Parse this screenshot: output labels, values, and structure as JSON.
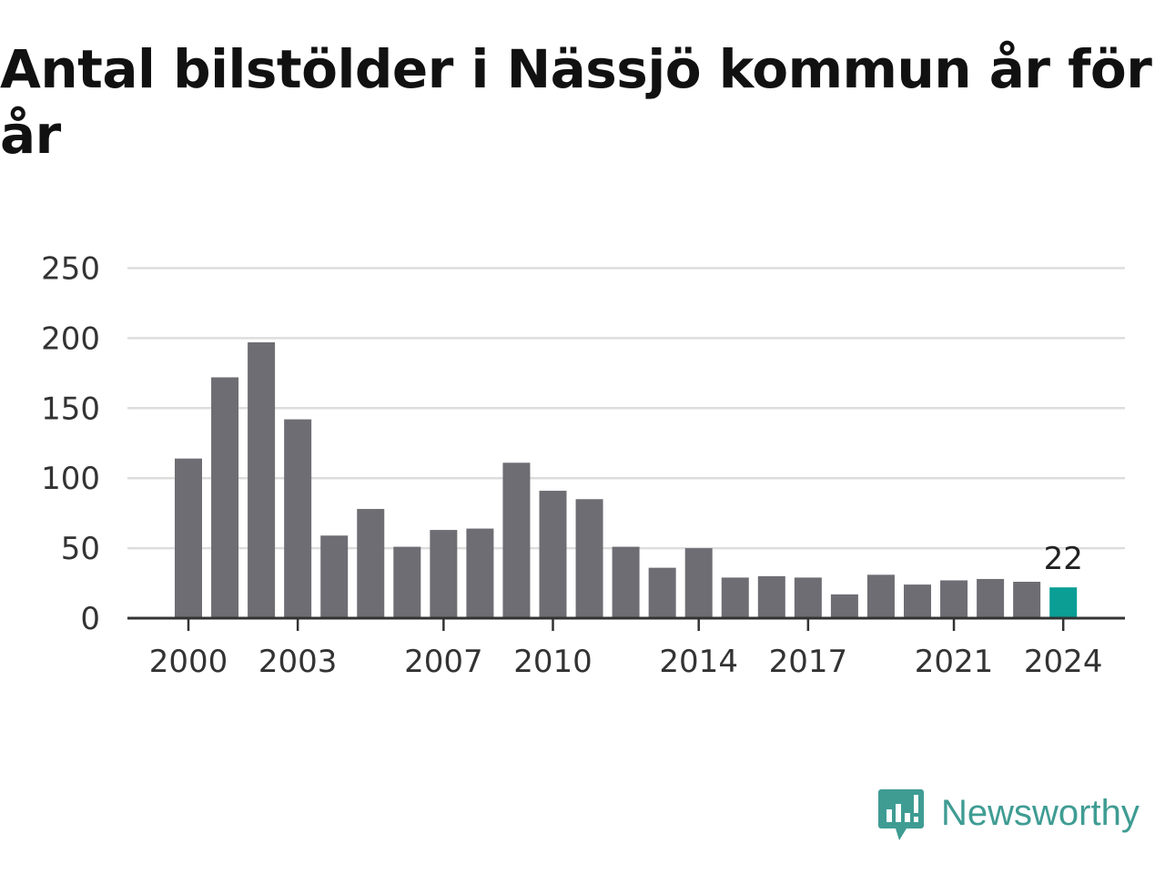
{
  "title": "Antal bilstölder i Nässjö kommun år för år",
  "brand": {
    "name": "Newsworthy",
    "color": "#3f9c93"
  },
  "colors": {
    "bar": "#6e6d73",
    "highlight": "#0a9e94",
    "grid": "#dddddd",
    "axis": "#333333"
  },
  "chart_data": {
    "type": "bar",
    "title": "Antal bilstölder i Nässjö kommun år för år",
    "xlabel": "",
    "ylabel": "",
    "categories": [
      2000,
      2001,
      2002,
      2003,
      2004,
      2005,
      2006,
      2007,
      2008,
      2009,
      2010,
      2011,
      2012,
      2013,
      2014,
      2015,
      2016,
      2017,
      2018,
      2019,
      2020,
      2021,
      2022,
      2023,
      2024
    ],
    "values": [
      114,
      172,
      197,
      142,
      59,
      78,
      51,
      63,
      64,
      111,
      91,
      85,
      51,
      36,
      50,
      29,
      30,
      29,
      17,
      31,
      24,
      27,
      28,
      26,
      22
    ],
    "ylim": [
      0,
      250
    ],
    "yticks": [
      0,
      50,
      100,
      150,
      200,
      250
    ],
    "xticks": [
      2000,
      2003,
      2007,
      2010,
      2014,
      2017,
      2021,
      2024
    ],
    "highlight": {
      "category": 2024,
      "label": "22"
    },
    "grid": true
  }
}
